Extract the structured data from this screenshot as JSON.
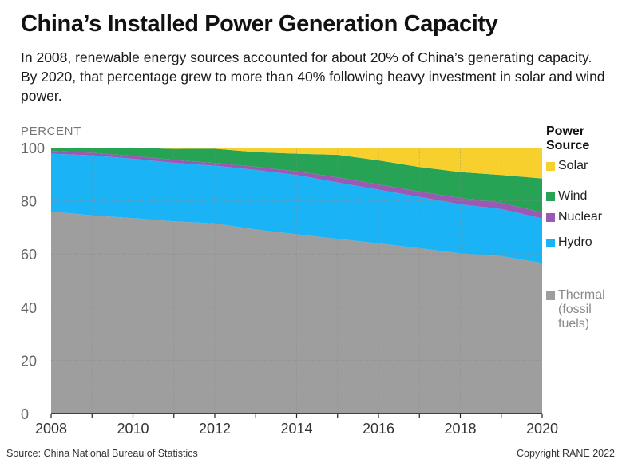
{
  "header": {
    "title": "China’s Installed Power Generation Capacity",
    "subtitle": "In 2008, renewable energy sources accounted for about 20% of China’s generating capacity. By 2020, that percentage grew to more than 40% following heavy investment in solar and wind power."
  },
  "legend": {
    "title": "Power\nSource",
    "items": [
      {
        "label": "Solar",
        "color": "#f7d02e",
        "text_color": "#222222"
      },
      {
        "label": "Wind",
        "color": "#27a356",
        "text_color": "#222222"
      },
      {
        "label": "Nuclear",
        "color": "#9b59b6",
        "text_color": "#222222"
      },
      {
        "label": "Hydro",
        "color": "#1ab3f5",
        "text_color": "#222222"
      },
      {
        "label": "Thermal\n(fossil\nfuels)",
        "color": "#9e9e9e",
        "text_color": "#8a8a8a"
      }
    ]
  },
  "footer": {
    "source": "Source: China National Bureau of Statistics",
    "copyright": "Copyright RANE 2022"
  },
  "chart_data": {
    "type": "area",
    "stacked": true,
    "title": "China’s Installed Power Generation Capacity",
    "ylabel": "PERCENT",
    "xlabel": "",
    "x": [
      2008,
      2009,
      2010,
      2011,
      2012,
      2013,
      2014,
      2015,
      2016,
      2017,
      2018,
      2019,
      2020
    ],
    "x_ticks": [
      2008,
      2010,
      2012,
      2014,
      2016,
      2018,
      2020
    ],
    "y_ticks": [
      0,
      20,
      40,
      60,
      80,
      100
    ],
    "ylim": [
      0,
      100
    ],
    "xlim": [
      2008,
      2020
    ],
    "grid": "horizontal",
    "legend_position": "right",
    "series": [
      {
        "name": "Thermal (fossil fuels)",
        "color": "#9e9e9e",
        "values": [
          76.0,
          74.5,
          73.5,
          72.3,
          71.5,
          69.2,
          67.4,
          65.7,
          64.0,
          62.2,
          60.2,
          59.2,
          56.6
        ]
      },
      {
        "name": "Hydro",
        "color": "#1ab3f5",
        "values": [
          21.7,
          22.6,
          22.3,
          22.0,
          21.7,
          22.4,
          22.3,
          21.2,
          20.2,
          19.3,
          18.5,
          17.7,
          16.8
        ]
      },
      {
        "name": "Nuclear",
        "color": "#9b59b6",
        "values": [
          1.1,
          1.0,
          1.1,
          1.1,
          1.0,
          1.2,
          1.4,
          1.9,
          2.0,
          2.0,
          2.4,
          2.4,
          2.2
        ]
      },
      {
        "name": "Wind",
        "color": "#27a356",
        "values": [
          1.2,
          1.9,
          3.1,
          4.1,
          5.4,
          5.5,
          6.6,
          8.5,
          9.0,
          9.2,
          9.7,
          10.4,
          12.8
        ]
      },
      {
        "name": "Solar",
        "color": "#f7d02e",
        "values": [
          0.0,
          0.0,
          0.0,
          0.5,
          0.4,
          1.7,
          2.3,
          2.7,
          4.8,
          7.3,
          9.2,
          10.3,
          11.6
        ]
      }
    ]
  }
}
